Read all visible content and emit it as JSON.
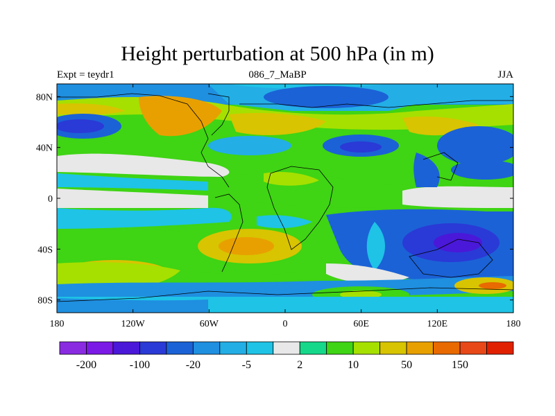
{
  "title": "Height perturbation at 500 hPa (in m)",
  "left_label": "Expt = teydr1",
  "center_label": "086_7_MaBP",
  "right_label": "JJA",
  "lat_ticks": [
    {
      "label": "80N",
      "lat": 80
    },
    {
      "label": "40N",
      "lat": 40
    },
    {
      "label": "0",
      "lat": 0
    },
    {
      "label": "40S",
      "lat": -40
    },
    {
      "label": "80S",
      "lat": -80
    }
  ],
  "lon_ticks": [
    {
      "label": "180",
      "lon": -180
    },
    {
      "label": "120W",
      "lon": -120
    },
    {
      "label": "60W",
      "lon": -60
    },
    {
      "label": "0",
      "lon": 0
    },
    {
      "label": "60E",
      "lon": 60
    },
    {
      "label": "120E",
      "lon": 120
    },
    {
      "label": "180",
      "lon": 180
    }
  ],
  "colorbar": {
    "colors": [
      "#8a2be2",
      "#7b19e6",
      "#4a18d8",
      "#2a3ad6",
      "#1b62d6",
      "#1f8fe0",
      "#23aee6",
      "#1ec3e6",
      "#e8e8e8",
      "#16d88a",
      "#3fd414",
      "#a6e000",
      "#d8c400",
      "#e8a000",
      "#e86a00",
      "#e84818",
      "#e02000"
    ],
    "labels": [
      {
        "text": "-200",
        "boundary": 1
      },
      {
        "text": "-100",
        "boundary": 3
      },
      {
        "text": "-20",
        "boundary": 5
      },
      {
        "text": "-5",
        "boundary": 7
      },
      {
        "text": "2",
        "boundary": 9
      },
      {
        "text": "10",
        "boundary": 11
      },
      {
        "text": "50",
        "boundary": 13
      },
      {
        "text": "150",
        "boundary": 15
      }
    ]
  }
}
